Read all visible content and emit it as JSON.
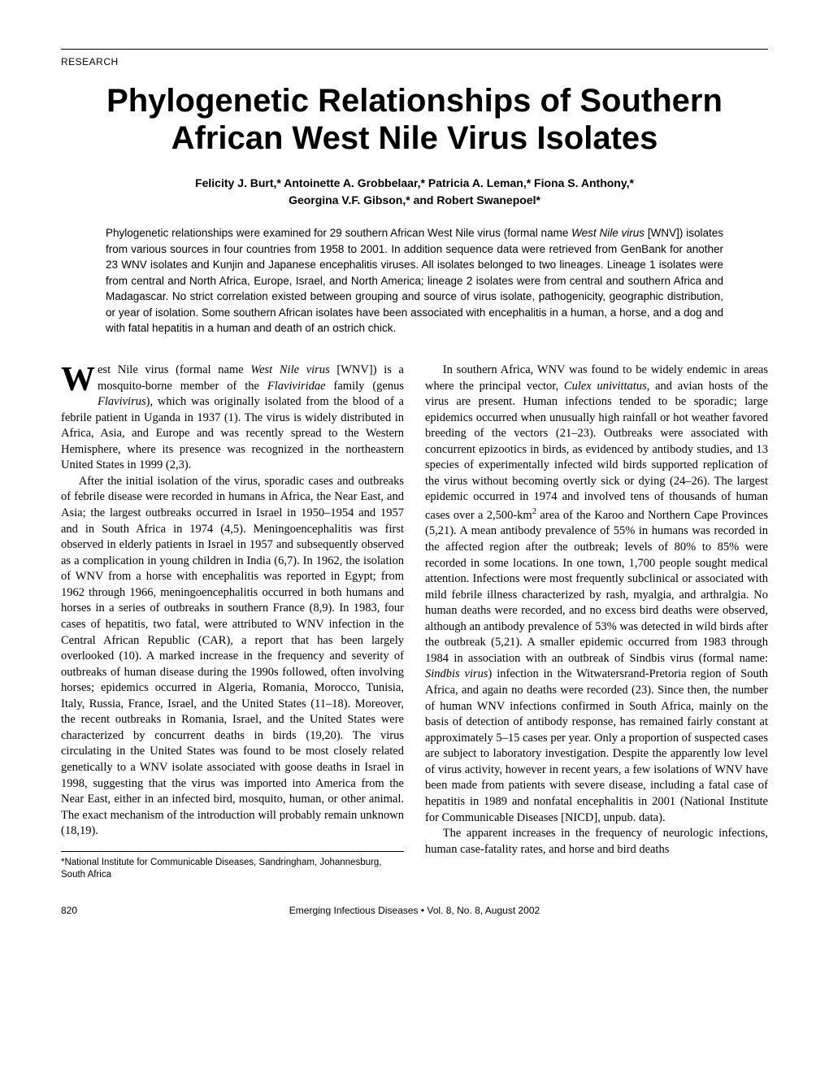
{
  "section_label": "RESEARCH",
  "title": "Phylogenetic Relationships of Southern African West Nile Virus Isolates",
  "authors_line1": "Felicity J. Burt,* Antoinette A. Grobbelaar,* Patricia A. Leman,* Fiona S. Anthony,*",
  "authors_line2": "Georgina V.F. Gibson,* and Robert Swanepoel*",
  "abstract_p1a": "Phylogenetic relationships were examined for 29 southern African West Nile virus (formal name ",
  "abstract_p1b": "West Nile virus",
  "abstract_p1c": " [WNV]) isolates from various sources in four countries from 1958 to 2001.  In addition sequence data were retrieved from GenBank for another 23 WNV isolates and Kunjin and Japanese encephalitis viruses. All isolates belonged to two lineages. Lineage 1 isolates were from central and North Africa, Europe, Israel, and North America; lineage 2 isolates were from central and southern Africa and Madagascar. No strict correlation existed between grouping and source of virus isolate, pathogenicity, geographic distribution, or year of isolation. Some southern African isolates have been associated with encephalitis in a human, a horse, and a dog and with fatal hepatitis in a human and death of an ostrich chick.",
  "left": {
    "p1a": "est Nile virus (formal name ",
    "p1b": "West Nile virus",
    "p1c": " [WNV]) is a mosquito-borne member of the ",
    "p1d": "Flaviviridae",
    "p1e": " family (genus ",
    "p1f": "Flavivirus",
    "p1g": "), which was originally isolated from the blood of a febrile patient in Uganda in 1937 (1). The virus is widely distributed in Africa, Asia, and Europe and was recently spread to the Western Hemisphere, where its presence was recognized in the northeastern United States in 1999 (2,3).",
    "p2": "After the initial isolation of the virus, sporadic cases and outbreaks of febrile disease were recorded in humans in Africa, the Near East, and Asia; the largest outbreaks occurred in Israel in 1950–1954 and 1957 and in South Africa in 1974 (4,5). Meningoencephalitis was first observed in elderly patients in Israel in 1957 and subsequently observed as a complication in young children in India (6,7). In 1962, the isolation of WNV from a horse with encephalitis was reported in Egypt; from 1962 through 1966, meningoencephalitis occurred in both humans and horses in a series of outbreaks in southern France (8,9). In 1983, four cases of hepatitis, two fatal, were attributed to WNV infection in the Central African Republic (CAR), a report that has been largely overlooked (10). A marked increase in the frequency and severity of outbreaks of human disease during the 1990s followed, often involving horses; epidemics occurred in Algeria, Romania, Morocco, Tunisia, Italy, Russia, France, Israel, and the United States (11–18). Moreover, the recent outbreaks in Romania, Israel, and the United States were characterized by concurrent deaths in birds (19,20). The virus circulating in the United States was found to be most closely related genetically to a WNV isolate associated with goose deaths in Israel in 1998, suggesting that the virus was imported into America from the Near East, either in an infected bird, mosquito, human, or other animal. The exact mechanism of the introduction will probably remain unknown (18,19)."
  },
  "right": {
    "p1a": "In southern Africa, WNV was found to be widely endemic in areas where the principal vector, ",
    "p1b": "Culex univittatus",
    "p1c": ", and avian hosts of the virus are present. Human infections tended to be sporadic; large epidemics occurred when unusually high rainfall or hot weather favored breeding of the vectors (21–23). Outbreaks were associated with concurrent epizootics in birds, as evidenced by antibody studies, and 13 species of experimentally infected wild birds supported replication of the virus without becoming overtly sick or dying (24–26). The largest epidemic occurred in 1974 and involved tens of thousands of human cases over a 2,500-km",
    "p1d": " area of the Karoo and Northern Cape Provinces (5,21). A mean antibody prevalence of 55% in humans was recorded in the affected region after the outbreak; levels of 80% to 85% were recorded in some locations. In one town, 1,700 people sought medical attention. Infections were most frequently subclinical or associated with mild febrile illness characterized by rash, myalgia, and arthralgia. No human deaths were recorded, and no excess bird deaths were observed, although an antibody prevalence of 53% was detected in wild birds after the outbreak (5,21). A smaller epidemic occurred from 1983 through 1984 in association with an outbreak of Sindbis virus (formal name: ",
    "p1e": "Sindbis virus",
    "p1f": ") infection in the Witwatersrand-Pretoria region of South Africa, and again no deaths were recorded (23). Since then, the number of human WNV infections confirmed in South Africa, mainly on the basis of detection of antibody response, has remained fairly constant at approximately 5–15 cases per year. Only a proportion of suspected cases are subject to laboratory investigation. Despite the apparently low level of virus activity, however in recent years, a few isolations of WNV have been made from patients with severe disease, including a fatal case of hepatitis in 1989 and nonfatal encephalitis in 2001 (National Institute for Communicable Diseases [NICD], unpub. data).",
    "p2": "The apparent increases in the frequency of neurologic infections, human case-fatality rates, and horse and bird deaths"
  },
  "footnote": "*National Institute for Communicable Diseases, Sandringham, Johannesburg, South Africa",
  "footer": {
    "page": "820",
    "journal": "Emerging Infectious Diseases  •  Vol. 8, No. 8, August 2002"
  }
}
